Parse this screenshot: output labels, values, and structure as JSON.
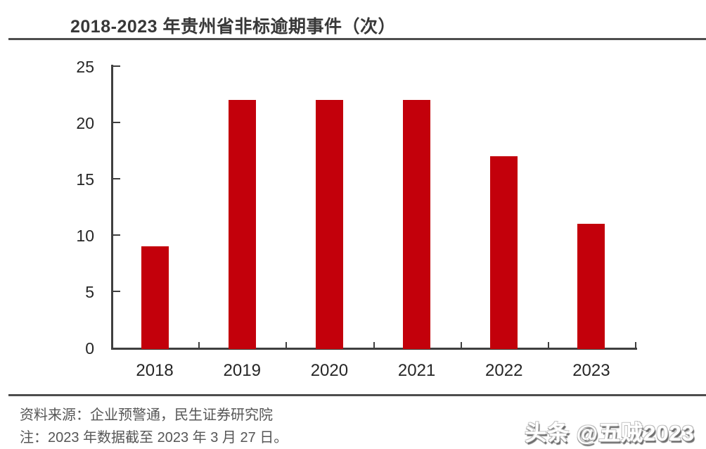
{
  "header": {
    "title": "2018-2023 年贵州省非标逾期事件（次）"
  },
  "chart_data": {
    "type": "bar",
    "categories": [
      "2018",
      "2019",
      "2020",
      "2021",
      "2022",
      "2023"
    ],
    "values": [
      9,
      22,
      22,
      22,
      17,
      11
    ],
    "title": "2018-2023 年贵州省非标逾期事件（次）",
    "xlabel": "",
    "ylabel": "",
    "ylim": [
      0,
      25
    ],
    "yticks": [
      0,
      5,
      10,
      15,
      20,
      25
    ],
    "grid": false,
    "legend": "none",
    "bar_color": "#c3000b"
  },
  "footer": {
    "source": "资料来源：企业预警通，民生证券研究院",
    "note": "注：2023 年数据截至 2023 年 3 月 27 日。",
    "watermark": "头条 @五贼2023"
  },
  "colors": {
    "bar": "#c3000b",
    "axis": "#3f3f3f",
    "title_text": "#383838",
    "rule": "#4d4d4d",
    "footer_text": "#565656",
    "tick_text": "#262626"
  }
}
